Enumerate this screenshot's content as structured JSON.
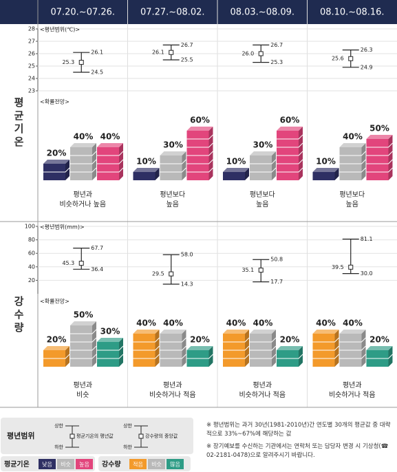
{
  "weeks": [
    "07.20.~07.26.",
    "07.27.~08.02.",
    "08.03.~08.09.",
    "08.10.~08.16."
  ],
  "sections": [
    "평균기온",
    "강수량"
  ],
  "chart_data": [
    {
      "type": "range",
      "label": "<평년범위(℃)>",
      "ylim": [
        23,
        28
      ],
      "yticks": [
        23,
        24,
        25,
        26,
        27,
        28
      ],
      "grid": true,
      "color": "#222222",
      "upper": [
        26.1,
        26.7,
        26.7,
        26.3
      ],
      "upper_labels": [
        "26.1",
        "26.7",
        "26.7",
        "26.3"
      ],
      "center": [
        25.3,
        26.1,
        26.0,
        25.6
      ],
      "center_labels": [
        "25.3",
        "26.1",
        "26.0",
        "25.6"
      ],
      "lower": [
        24.5,
        25.5,
        25.3,
        24.9
      ],
      "lower_labels": [
        "24.5",
        "25.5",
        "25.3",
        "24.9"
      ]
    },
    {
      "type": "range",
      "label": "<평년범위(mm)>",
      "ylim": [
        0,
        100
      ],
      "yticks": [
        20,
        40,
        60,
        80,
        100
      ],
      "grid": true,
      "color": "#222222",
      "upper": [
        67.7,
        58.0,
        50.8,
        81.1
      ],
      "upper_labels": [
        "67.7",
        "58.0",
        "50.8",
        "81.1"
      ],
      "center": [
        45.3,
        29.5,
        35.1,
        39.5
      ],
      "center_labels": [
        "45.3",
        "29.5",
        "35.1",
        "39.5"
      ],
      "lower": [
        36.4,
        14.3,
        17.7,
        30.0
      ],
      "lower_labels": [
        "36.4",
        "14.3",
        "17.7",
        "30.0"
      ]
    }
  ],
  "probability": [
    {
      "label": "<확률전망>",
      "colors": [
        "#2e2f63",
        "#b9b9b9",
        "#e2457c"
      ],
      "values": [
        [
          20,
          40,
          40
        ],
        [
          10,
          30,
          60
        ],
        [
          10,
          30,
          60
        ],
        [
          10,
          40,
          50
        ]
      ],
      "value_labels": [
        [
          "20%",
          "40%",
          "40%"
        ],
        [
          "10%",
          "30%",
          "60%"
        ],
        [
          "10%",
          "30%",
          "60%"
        ],
        [
          "10%",
          "40%",
          "50%"
        ]
      ],
      "captions": [
        [
          "평년과",
          "비슷하거나 높음"
        ],
        [
          "평년보다",
          "높음"
        ],
        [
          "평년보다",
          "높음"
        ],
        [
          "평년보다",
          "높음"
        ]
      ]
    },
    {
      "label": "<확률전망>",
      "colors": [
        "#f39a2b",
        "#b9b9b9",
        "#2e9c86"
      ],
      "values": [
        [
          20,
          50,
          30
        ],
        [
          40,
          40,
          20
        ],
        [
          40,
          40,
          20
        ],
        [
          40,
          40,
          20
        ]
      ],
      "value_labels": [
        [
          "20%",
          "50%",
          "30%"
        ],
        [
          "40%",
          "40%",
          "20%"
        ],
        [
          "40%",
          "40%",
          "20%"
        ],
        [
          "40%",
          "40%",
          "20%"
        ]
      ],
      "captions": [
        [
          "평년과",
          "비슷"
        ],
        [
          "평년과",
          "비슷하거나 적음"
        ],
        [
          "평년과",
          "비슷하거나 적음"
        ],
        [
          "평년과",
          "비슷하거나 적음"
        ]
      ]
    }
  ],
  "legend": {
    "range": {
      "title": "평년범위",
      "items": [
        {
          "upper": "상한",
          "center": "평균기온의 평년값",
          "lower": "하한"
        },
        {
          "upper": "상한",
          "center": "강수량의 중앙값",
          "lower": "하한"
        }
      ]
    },
    "temp": {
      "title": "평균기온",
      "items": [
        "낮음",
        "비슷",
        "높음"
      ]
    },
    "precip": {
      "title": "강수량",
      "items": [
        "적음",
        "비슷",
        "많음"
      ]
    }
  },
  "notes": [
    "※ 평년범위는 과거 30년(1981-2010년)간 연도별 30개의 평균값 중 대략적으로 33%~67%에 해당하는 값",
    "※ 장기예보를 수신하는 기관에서는 연락처 또는 담당자 변경 시 기상청(☎ 02-2181-0478)으로 알려주시기 바랍니다."
  ]
}
